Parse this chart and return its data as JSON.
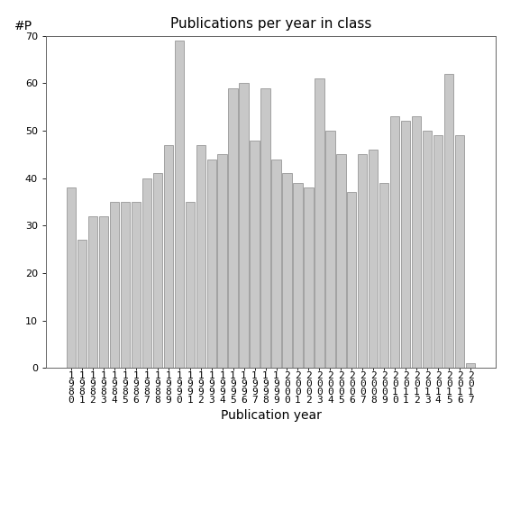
{
  "title": "Publications per year in class",
  "xlabel": "Publication year",
  "ylabel": "#P",
  "bar_color": "#c8c8c8",
  "bar_edgecolor": "#888888",
  "categories": [
    "1\n9\n8\n0",
    "1\n9\n8\n1",
    "1\n9\n8\n2",
    "1\n9\n8\n3",
    "1\n9\n8\n4",
    "1\n9\n8\n5",
    "1\n9\n8\n6",
    "1\n9\n8\n7",
    "1\n9\n8\n8",
    "1\n9\n8\n9",
    "1\n9\n9\n0",
    "1\n9\n9\n1",
    "1\n9\n9\n2",
    "1\n9\n9\n3",
    "1\n9\n9\n4",
    "1\n9\n9\n5",
    "1\n9\n9\n6",
    "1\n9\n9\n7",
    "1\n9\n9\n8",
    "1\n9\n9\n9",
    "2\n0\n0\n0",
    "2\n0\n0\n1",
    "2\n0\n0\n2",
    "2\n0\n0\n3",
    "2\n0\n0\n4",
    "2\n0\n0\n5",
    "2\n0\n0\n6",
    "2\n0\n0\n7",
    "2\n0\n0\n8",
    "2\n0\n0\n9",
    "2\n0\n1\n0",
    "2\n0\n1\n1",
    "2\n0\n1\n2",
    "2\n0\n1\n3",
    "2\n0\n1\n4",
    "2\n0\n1\n5",
    "2\n0\n1\n6",
    "2\n0\n1\n7"
  ],
  "values": [
    38,
    27,
    32,
    32,
    35,
    35,
    35,
    40,
    41,
    47,
    69,
    35,
    47,
    44,
    45,
    59,
    60,
    48,
    59,
    44,
    41,
    39,
    38,
    61,
    50,
    45,
    37,
    45,
    46,
    39,
    53,
    52,
    53,
    50,
    49,
    62,
    49,
    1
  ],
  "ylim": [
    0,
    70
  ],
  "yticks": [
    0,
    10,
    20,
    30,
    40,
    50,
    60,
    70
  ],
  "background_color": "#ffffff",
  "title_fontsize": 11,
  "xlabel_fontsize": 10,
  "ylabel_fontsize": 10,
  "tick_fontsize": 8,
  "bar_linewidth": 0.5
}
